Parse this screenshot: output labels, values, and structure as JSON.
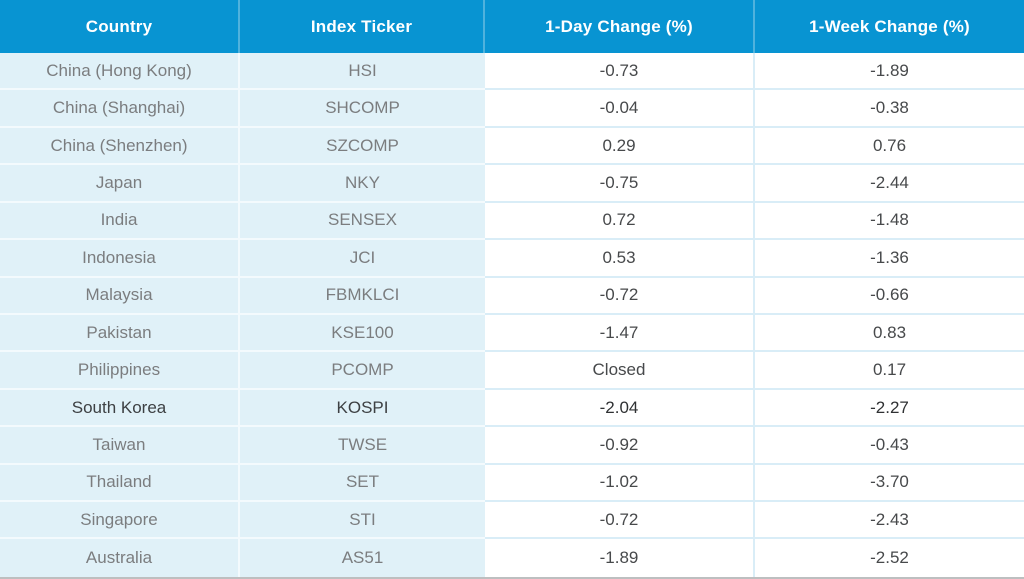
{
  "colors": {
    "header_bg": "#0894d2",
    "header_divider": "#4fb2dd",
    "header_text": "#ffffff",
    "left_columns_bg": "#e0f1f8",
    "right_columns_bg": "#ffffff",
    "divider_on_light_blue": "#f3fafd",
    "divider_on_white": "#d9edf7",
    "bottom_border": "#bdbfc0",
    "label_text": "#7b7d7f",
    "value_text": "#47494b",
    "highlight_row_text": "#3d4043"
  },
  "chart_data": {
    "type": "table",
    "columns": [
      "Country",
      "Index Ticker",
      "1-Day Change (%)",
      "1-Week Change (%)"
    ],
    "rows": [
      {
        "country": "China (Hong Kong)",
        "ticker": "HSI",
        "day_change": "-0.73",
        "week_change": "-1.89",
        "highlighted": false
      },
      {
        "country": "China (Shanghai)",
        "ticker": "SHCOMP",
        "day_change": "-0.04",
        "week_change": "-0.38",
        "highlighted": false
      },
      {
        "country": "China (Shenzhen)",
        "ticker": "SZCOMP",
        "day_change": "0.29",
        "week_change": "0.76",
        "highlighted": false
      },
      {
        "country": "Japan",
        "ticker": "NKY",
        "day_change": "-0.75",
        "week_change": "-2.44",
        "highlighted": false
      },
      {
        "country": "India",
        "ticker": "SENSEX",
        "day_change": "0.72",
        "week_change": "-1.48",
        "highlighted": false
      },
      {
        "country": "Indonesia",
        "ticker": "JCI",
        "day_change": "0.53",
        "week_change": "-1.36",
        "highlighted": false
      },
      {
        "country": "Malaysia",
        "ticker": "FBMKLCI",
        "day_change": "-0.72",
        "week_change": "-0.66",
        "highlighted": false
      },
      {
        "country": "Pakistan",
        "ticker": "KSE100",
        "day_change": "-1.47",
        "week_change": "0.83",
        "highlighted": false
      },
      {
        "country": "Philippines",
        "ticker": "PCOMP",
        "day_change": "Closed",
        "week_change": "0.17",
        "highlighted": false
      },
      {
        "country": "South Korea",
        "ticker": "KOSPI",
        "day_change": "-2.04",
        "week_change": "-2.27",
        "highlighted": true
      },
      {
        "country": "Taiwan",
        "ticker": "TWSE",
        "day_change": "-0.92",
        "week_change": "-0.43",
        "highlighted": false
      },
      {
        "country": "Thailand",
        "ticker": "SET",
        "day_change": "-1.02",
        "week_change": "-3.70",
        "highlighted": false
      },
      {
        "country": "Singapore",
        "ticker": "STI",
        "day_change": "-0.72",
        "week_change": "-2.43",
        "highlighted": false
      },
      {
        "country": "Australia",
        "ticker": "AS51",
        "day_change": "-1.89",
        "week_change": "-2.52",
        "highlighted": false
      }
    ]
  }
}
